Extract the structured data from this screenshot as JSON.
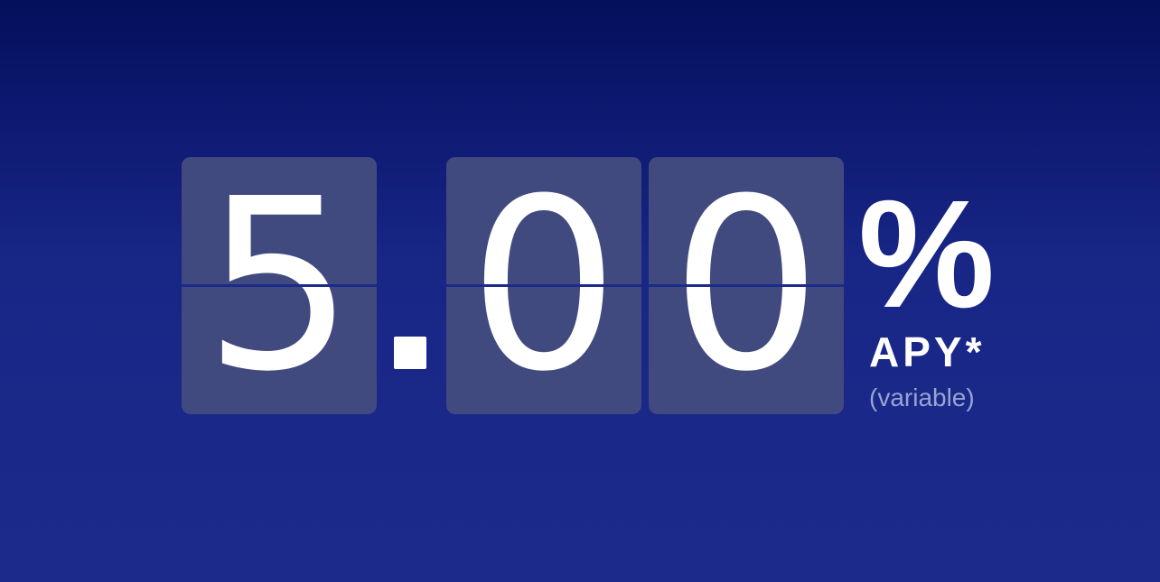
{
  "rate": {
    "digit_1": "5",
    "decimal_separator": ".",
    "digit_2": "0",
    "digit_3": "0",
    "percent_sign": "%",
    "label": "APY*",
    "qualifier": "(variable)"
  },
  "colors": {
    "background_top": "#04105a",
    "background_bottom": "#1c2a8c",
    "tile": "#414a7e",
    "text": "#ffffff",
    "muted_text": "#9aa3d4"
  }
}
